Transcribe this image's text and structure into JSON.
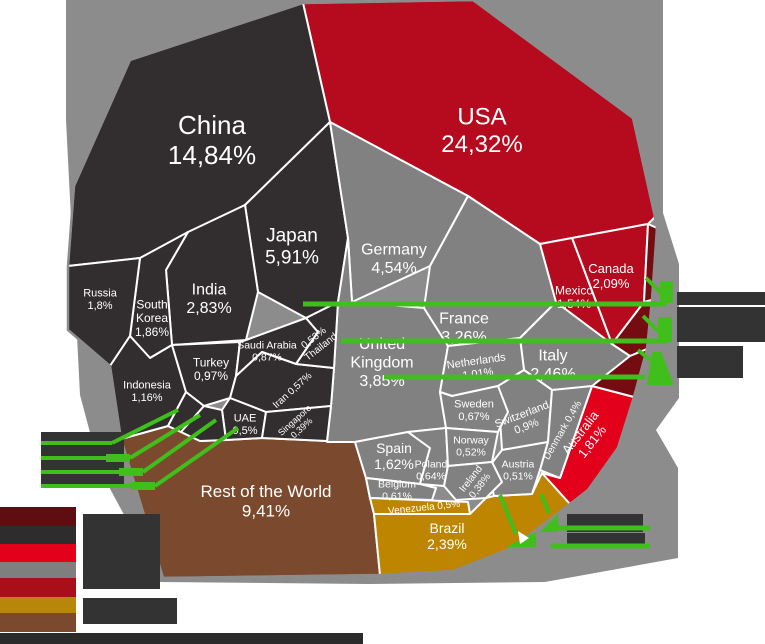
{
  "chart_data": {
    "type": "voronoi_treemap",
    "title": "",
    "unit": "percent share",
    "number_format": "comma-decimal",
    "background_color": "#8C8C8C",
    "border_color": "#FFFFFF",
    "groups": {
      "asia": "#322E2F",
      "americas": "#B60A1E",
      "americas_small": "#740C12",
      "europe": "#818181",
      "australia": "#E2001A",
      "south_america": "#BD8500",
      "rest_of_world": "#7B4A2E"
    },
    "cells": [
      {
        "name": "USA",
        "value": "24,32%",
        "group": "americas"
      },
      {
        "name": "China",
        "value": "14,84%",
        "group": "asia"
      },
      {
        "name": "Rest of the World",
        "value": "9,41%",
        "group": "rest_of_world"
      },
      {
        "name": "Japan",
        "value": "5,91%",
        "group": "asia"
      },
      {
        "name": "Germany",
        "value": "4,54%",
        "group": "europe"
      },
      {
        "name": "United Kingdom",
        "value": "3,85%",
        "group": "europe"
      },
      {
        "name": "France",
        "value": "3,26%",
        "group": "europe"
      },
      {
        "name": "India",
        "value": "2,83%",
        "group": "asia"
      },
      {
        "name": "Italy",
        "value": "2,46%",
        "group": "europe"
      },
      {
        "name": "Brazil",
        "value": "2,39%",
        "group": "south_america"
      },
      {
        "name": "Canada",
        "value": "2,09%",
        "group": "americas"
      },
      {
        "name": "South Korea",
        "value": "1,86%",
        "group": "asia"
      },
      {
        "name": "Australia",
        "value": "1,81%",
        "group": "australia"
      },
      {
        "name": "Russia",
        "value": "1,8%",
        "group": "asia"
      },
      {
        "name": "Spain",
        "value": "1,62%",
        "group": "europe"
      },
      {
        "name": "Mexico",
        "value": "1,54%",
        "group": "americas"
      },
      {
        "name": "Indonesia",
        "value": "1,16%",
        "group": "asia"
      },
      {
        "name": "Netherlands",
        "value": "1,01%",
        "group": "europe"
      },
      {
        "name": "Turkey",
        "value": "0,97%",
        "group": "asia"
      },
      {
        "name": "Switzerland",
        "value": "0,9%",
        "group": "europe"
      },
      {
        "name": "Saudi Arabia",
        "value": "0,87%",
        "group": "asia"
      },
      {
        "name": "Sweden",
        "value": "0,67%",
        "group": "europe"
      },
      {
        "name": "Poland",
        "value": "0,64%",
        "group": "europe"
      },
      {
        "name": "Belgium",
        "value": "0,61%",
        "group": "europe"
      },
      {
        "name": "Iran",
        "value": "0,57%",
        "group": "asia"
      },
      {
        "name": "Thailand",
        "value": "0,53%",
        "group": "asia"
      },
      {
        "name": "Norway",
        "value": "0,52%",
        "group": "europe"
      },
      {
        "name": "Austria",
        "value": "0,51%",
        "group": "europe"
      },
      {
        "name": "UAE",
        "value": "0,5%",
        "group": "asia"
      },
      {
        "name": "Venezuela",
        "value": "0,5%",
        "group": "south_america"
      },
      {
        "name": "Denmark",
        "value": "0,4%",
        "group": "europe"
      },
      {
        "name": "Singapore",
        "value": "0,39%",
        "group": "asia"
      },
      {
        "name": "Ireland",
        "value": "0,38%",
        "group": "europe"
      }
    ],
    "legend_swatches": [
      "#5E0D11",
      "#2F2C2D",
      "#E3001B",
      "#7F7F7F",
      "#A90F18",
      "#B8860B",
      "#7B4A2E"
    ]
  },
  "annotations": {
    "highlight_color": "#3FBE1C",
    "redaction_color": "#333333",
    "caption_bar_color": "#2B2B2B",
    "left_redacted_callouts": 4,
    "right_redacted_callouts": 3,
    "bottom_redacted_callouts": 2,
    "unlabeled_small_cells": 5
  }
}
